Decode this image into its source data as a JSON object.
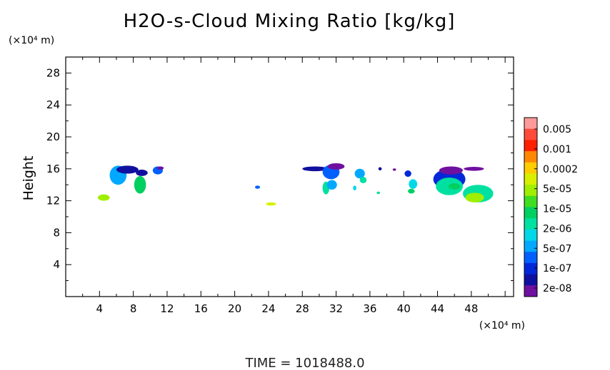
{
  "chart_data": {
    "type": "heatmap",
    "title": "H2O-s-Cloud Mixing Ratio [kg/kg]",
    "ylabel": "Height",
    "x_unit_label": "(×10⁴ m)",
    "y_unit_label": "(×10⁴ m)",
    "xlim": [
      0,
      53
    ],
    "ylim": [
      0,
      30
    ],
    "xticks": [
      "4",
      "8",
      "12",
      "16",
      "20",
      "24",
      "28",
      "32",
      "36",
      "40",
      "44",
      "48"
    ],
    "yticks": [
      "4",
      "8",
      "12",
      "16",
      "20",
      "24",
      "28"
    ],
    "colorbar": {
      "labels": [
        "0.005",
        "0.001",
        "0.0002",
        "5e-05",
        "1e-05",
        "2e-06",
        "5e-07",
        "1e-07",
        "2e-08"
      ],
      "colors": [
        "#ff9a9a",
        "#ff4a3a",
        "#ff2000",
        "#ff8800",
        "#ffcc00",
        "#d8f000",
        "#a0ee00",
        "#40dd20",
        "#00d060",
        "#00e0a0",
        "#00d8e8",
        "#00a8ff",
        "#0060ff",
        "#0028d8",
        "#1010a0",
        "#7010a0"
      ]
    },
    "cloud_regions": [
      {
        "x": 4.5,
        "y": 12.4,
        "rx": 0.7,
        "ry": 0.4,
        "level": 6
      },
      {
        "x": 6.2,
        "y": 15.2,
        "rx": 1.0,
        "ry": 1.2,
        "level": 11
      },
      {
        "x": 7.3,
        "y": 15.9,
        "rx": 1.3,
        "ry": 0.5,
        "level": 14
      },
      {
        "x": 8.8,
        "y": 14.0,
        "rx": 0.7,
        "ry": 1.1,
        "level": 8
      },
      {
        "x": 9.0,
        "y": 15.5,
        "rx": 0.7,
        "ry": 0.4,
        "level": 14
      },
      {
        "x": 10.9,
        "y": 15.8,
        "rx": 0.6,
        "ry": 0.5,
        "level": 12
      },
      {
        "x": 11.2,
        "y": 16.1,
        "rx": 0.4,
        "ry": 0.2,
        "level": 15
      },
      {
        "x": 22.7,
        "y": 13.7,
        "rx": 0.3,
        "ry": 0.2,
        "level": 12
      },
      {
        "x": 24.3,
        "y": 11.6,
        "rx": 0.6,
        "ry": 0.2,
        "level": 5
      },
      {
        "x": 29.5,
        "y": 16.0,
        "rx": 1.5,
        "ry": 0.3,
        "level": 14
      },
      {
        "x": 31.4,
        "y": 15.6,
        "rx": 1.0,
        "ry": 0.9,
        "level": 12
      },
      {
        "x": 32.0,
        "y": 16.3,
        "rx": 1.0,
        "ry": 0.4,
        "level": 15
      },
      {
        "x": 30.8,
        "y": 13.6,
        "rx": 0.4,
        "ry": 0.8,
        "level": 9
      },
      {
        "x": 31.5,
        "y": 14.0,
        "rx": 0.6,
        "ry": 0.6,
        "level": 11
      },
      {
        "x": 34.8,
        "y": 15.4,
        "rx": 0.6,
        "ry": 0.6,
        "level": 11
      },
      {
        "x": 35.2,
        "y": 14.6,
        "rx": 0.4,
        "ry": 0.4,
        "level": 9
      },
      {
        "x": 34.2,
        "y": 13.6,
        "rx": 0.2,
        "ry": 0.3,
        "level": 10
      },
      {
        "x": 37.2,
        "y": 16.0,
        "rx": 0.2,
        "ry": 0.2,
        "level": 14
      },
      {
        "x": 37.0,
        "y": 13.0,
        "rx": 0.2,
        "ry": 0.15,
        "level": 9
      },
      {
        "x": 38.9,
        "y": 15.9,
        "rx": 0.2,
        "ry": 0.15,
        "level": 15
      },
      {
        "x": 40.5,
        "y": 15.4,
        "rx": 0.4,
        "ry": 0.4,
        "level": 13
      },
      {
        "x": 41.1,
        "y": 14.1,
        "rx": 0.5,
        "ry": 0.6,
        "level": 10
      },
      {
        "x": 40.9,
        "y": 13.2,
        "rx": 0.4,
        "ry": 0.3,
        "level": 8
      },
      {
        "x": 45.4,
        "y": 14.7,
        "rx": 1.9,
        "ry": 1.3,
        "level": 13
      },
      {
        "x": 45.6,
        "y": 15.8,
        "rx": 1.4,
        "ry": 0.5,
        "level": 15
      },
      {
        "x": 45.4,
        "y": 13.8,
        "rx": 1.6,
        "ry": 1.1,
        "level": 9
      },
      {
        "x": 46.0,
        "y": 13.8,
        "rx": 0.7,
        "ry": 0.4,
        "level": 8
      },
      {
        "x": 48.3,
        "y": 16.0,
        "rx": 1.2,
        "ry": 0.25,
        "level": 15
      },
      {
        "x": 48.8,
        "y": 12.9,
        "rx": 1.8,
        "ry": 1.1,
        "level": 9
      },
      {
        "x": 48.4,
        "y": 12.4,
        "rx": 1.1,
        "ry": 0.6,
        "level": 6
      }
    ]
  },
  "footer": {
    "time_text": "TIME =   1018488.0"
  }
}
